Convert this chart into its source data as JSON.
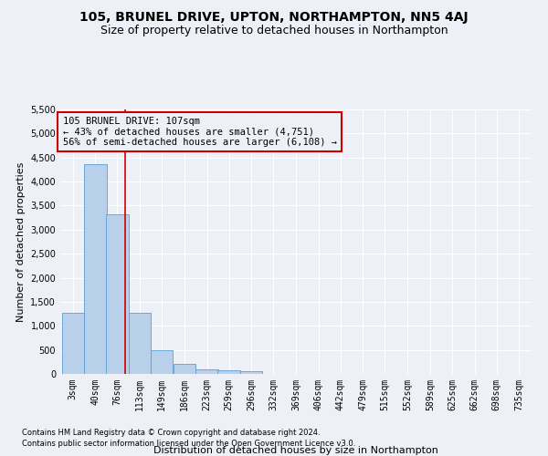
{
  "title": "105, BRUNEL DRIVE, UPTON, NORTHAMPTON, NN5 4AJ",
  "subtitle": "Size of property relative to detached houses in Northampton",
  "xlabel": "Distribution of detached houses by size in Northampton",
  "ylabel": "Number of detached properties",
  "footnote1": "Contains HM Land Registry data © Crown copyright and database right 2024.",
  "footnote2": "Contains public sector information licensed under the Open Government Licence v3.0.",
  "annotation_line1": "105 BRUNEL DRIVE: 107sqm",
  "annotation_line2": "← 43% of detached houses are smaller (4,751)",
  "annotation_line3": "56% of semi-detached houses are larger (6,108) →",
  "bar_color": "#b8d0ea",
  "bar_edge_color": "#5a9fd4",
  "vline_color": "#cc0000",
  "vline_x": 107,
  "categories": [
    "3sqm",
    "40sqm",
    "76sqm",
    "113sqm",
    "149sqm",
    "186sqm",
    "223sqm",
    "259sqm",
    "296sqm",
    "332sqm",
    "369sqm",
    "406sqm",
    "442sqm",
    "479sqm",
    "515sqm",
    "552sqm",
    "589sqm",
    "625sqm",
    "662sqm",
    "698sqm",
    "735sqm"
  ],
  "bin_edges": [
    3,
    40,
    76,
    113,
    149,
    186,
    223,
    259,
    296,
    332,
    369,
    406,
    442,
    479,
    515,
    552,
    589,
    625,
    662,
    698,
    735
  ],
  "bar_heights": [
    1270,
    4360,
    3310,
    1280,
    490,
    210,
    90,
    70,
    50,
    0,
    0,
    0,
    0,
    0,
    0,
    0,
    0,
    0,
    0,
    0
  ],
  "ylim": [
    0,
    5500
  ],
  "yticks": [
    0,
    500,
    1000,
    1500,
    2000,
    2500,
    3000,
    3500,
    4000,
    4500,
    5000,
    5500
  ],
  "bg_color": "#edf1f7",
  "grid_color": "#ffffff",
  "title_fontsize": 10,
  "subtitle_fontsize": 9,
  "axis_label_fontsize": 8,
  "tick_fontsize": 7,
  "annot_fontsize": 7.5,
  "footnote_fontsize": 6
}
